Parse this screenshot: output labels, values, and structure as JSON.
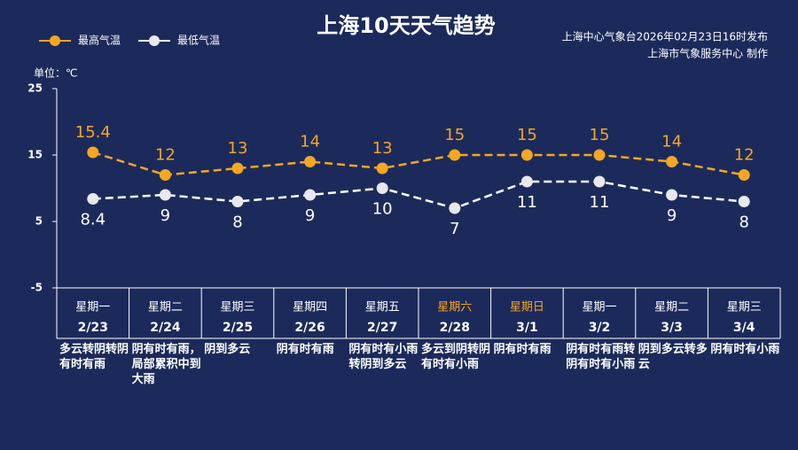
{
  "chart_data": {
    "type": "line",
    "title": "上海10天天气趋势",
    "subtitle": [
      "上海中心气象台2026年02月23日16时发布",
      "上海市气象服务中心  制作"
    ],
    "unit_label": "单位：℃",
    "weekdays": [
      "星期一",
      "星期二",
      "星期三",
      "星期四",
      "星期五",
      "星期六",
      "星期日",
      "星期一",
      "星期二",
      "星期三"
    ],
    "weekday_colors": [
      "#ffffff",
      "#ffffff",
      "#ffffff",
      "#ffffff",
      "#ffffff",
      "#f5a623",
      "#f5a623",
      "#ffffff",
      "#ffffff",
      "#ffffff"
    ],
    "categories": [
      "2/23",
      "2/24",
      "2/25",
      "2/26",
      "2/27",
      "2/28",
      "3/1",
      "3/2",
      "3/3",
      "3/4"
    ],
    "descriptions": [
      "多云转阴转阴有时有雨",
      "阴有时有雨，局部累积中到大雨",
      "阴到多云",
      "阴有时有雨",
      "阴有时有小雨转阴到多云",
      "多云到阴转阴有时有小雨",
      "阴有时有雨",
      "阴有时有雨转阴有时有小雨",
      "阴到多云转多云",
      "阴有时有小雨"
    ],
    "series": [
      {
        "name": "最高气温",
        "color": "#f5a623",
        "values": [
          15.4,
          12,
          13,
          14,
          13,
          15,
          15,
          15,
          14,
          12
        ]
      },
      {
        "name": "最低气温",
        "color": "#ffffff",
        "values": [
          8.4,
          9,
          8,
          9,
          10,
          7,
          11,
          11,
          9,
          8
        ]
      }
    ],
    "ylim": [
      -5,
      25
    ],
    "yticks": [
      25,
      15,
      5,
      -5
    ],
    "grid": false
  }
}
